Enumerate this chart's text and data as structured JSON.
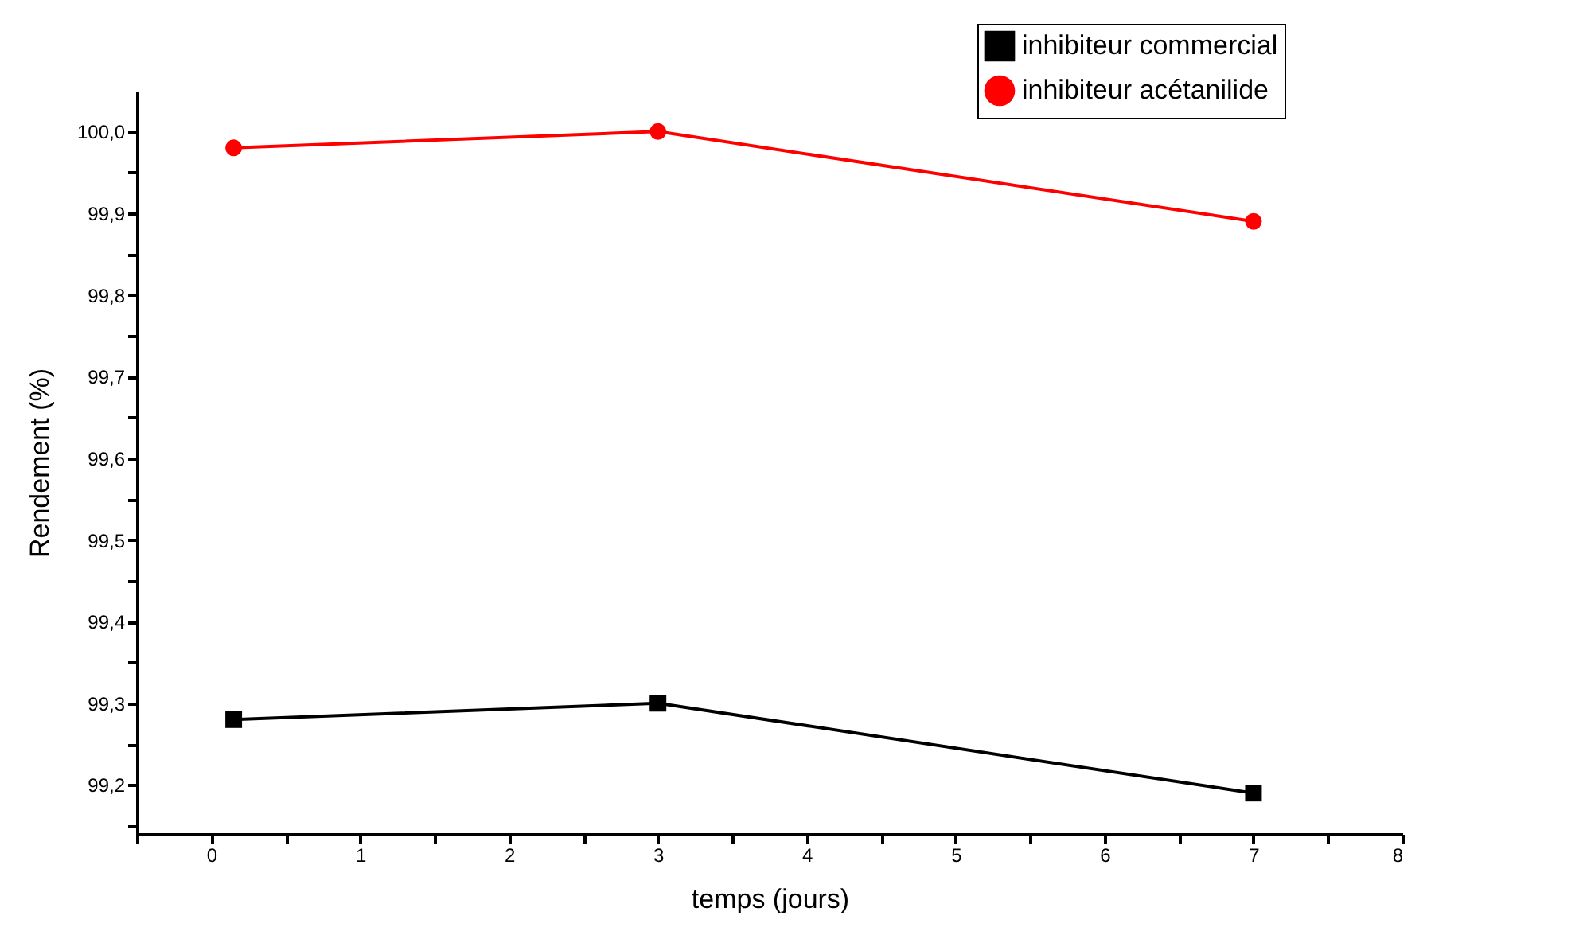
{
  "chart_data": {
    "type": "line",
    "xlabel": "temps (jours)",
    "ylabel": "Rendement (%)",
    "x": [
      0.15,
      3,
      7
    ],
    "series": [
      {
        "name": "inhibiteur commercial",
        "color": "#000000",
        "marker": "square",
        "values": [
          99.28,
          99.3,
          99.19
        ]
      },
      {
        "name": "inhibiteur acétanilide",
        "color": "#ff0000",
        "marker": "circle",
        "values": [
          99.98,
          100.0,
          99.89
        ]
      }
    ],
    "xlim": [
      -0.5,
      8
    ],
    "xticks": [
      {
        "value": -0.5,
        "label": null
      },
      0,
      {
        "value": 0.5,
        "label": null
      },
      1,
      {
        "value": 1.5,
        "label": null
      },
      2,
      {
        "value": 2.5,
        "label": null
      },
      3,
      {
        "value": 3.5,
        "label": null
      },
      4,
      {
        "value": 4.5,
        "label": null
      },
      5,
      {
        "value": 5.5,
        "label": null
      },
      6,
      {
        "value": 6.5,
        "label": null
      },
      7,
      {
        "value": 7.5,
        "label": null
      },
      8
    ],
    "ylim": [
      99.14,
      100.05
    ],
    "yticks": [
      {
        "value": 99.15,
        "label": null
      },
      {
        "value": 99.2,
        "label": "99,2"
      },
      {
        "value": 99.25,
        "label": null
      },
      {
        "value": 99.3,
        "label": "99,3"
      },
      {
        "value": 99.35,
        "label": null
      },
      {
        "value": 99.4,
        "label": "99,4"
      },
      {
        "value": 99.45,
        "label": null
      },
      {
        "value": 99.5,
        "label": "99,5"
      },
      {
        "value": 99.55,
        "label": null
      },
      {
        "value": 99.6,
        "label": "99,6"
      },
      {
        "value": 99.65,
        "label": null
      },
      {
        "value": 99.7,
        "label": "99,7"
      },
      {
        "value": 99.75,
        "label": null
      },
      {
        "value": 99.8,
        "label": "99,8"
      },
      {
        "value": 99.85,
        "label": null
      },
      {
        "value": 99.9,
        "label": "99,9"
      },
      {
        "value": 99.95,
        "label": null
      },
      {
        "value": 100.0,
        "label": "100,0"
      }
    ],
    "grid": false,
    "legend": "top right",
    "line_style": "solid"
  }
}
